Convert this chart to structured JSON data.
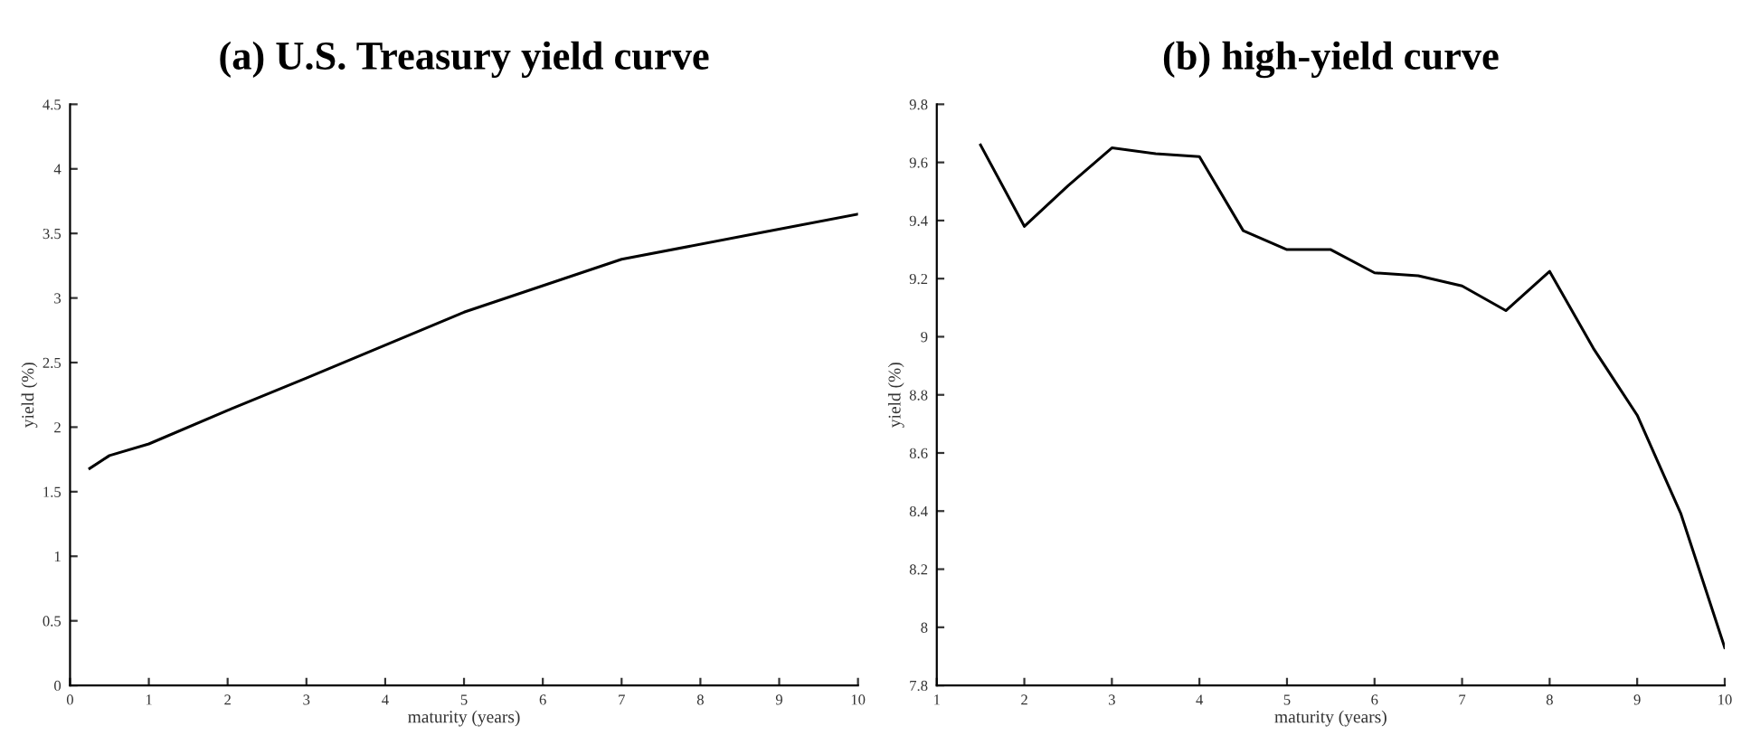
{
  "chart_data": [
    {
      "type": "line",
      "title": "(a) U.S. Treasury yield curve",
      "xlabel": "maturity (years)",
      "ylabel": "yield (%)",
      "series": [
        {
          "color": "#000000",
          "x": [
            0.25,
            0.5,
            1,
            2,
            3,
            5,
            7,
            10
          ],
          "values": [
            1.68,
            1.78,
            1.87,
            2.13,
            2.38,
            2.89,
            3.3,
            3.65
          ]
        }
      ],
      "xlim": [
        0,
        10
      ],
      "xticks": [
        0,
        1,
        2,
        3,
        4,
        5,
        6,
        7,
        8,
        9,
        10
      ],
      "ylim": [
        0,
        4.5
      ],
      "yticks": [
        0,
        0.5,
        1,
        1.5,
        2,
        2.5,
        3,
        3.5,
        4,
        4.5
      ],
      "grid": false,
      "legend": false
    },
    {
      "type": "line",
      "title": "(b) high-yield curve",
      "xlabel": "maturity (years)",
      "ylabel": "yield (%)",
      "series": [
        {
          "color": "#000000",
          "x": [
            1.5,
            2,
            2.5,
            3,
            3.5,
            4,
            4.5,
            5,
            5.5,
            6,
            6.5,
            7,
            7.5,
            8,
            8.5,
            9,
            9.5,
            10
          ],
          "values": [
            9.66,
            9.38,
            9.52,
            9.65,
            9.63,
            9.62,
            9.365,
            9.3,
            9.3,
            9.22,
            9.21,
            9.175,
            9.09,
            9.225,
            8.96,
            8.73,
            8.39,
            7.93
          ]
        }
      ],
      "xlim": [
        1,
        10
      ],
      "xticks": [
        1,
        2,
        3,
        4,
        5,
        6,
        7,
        8,
        9,
        10
      ],
      "ylim": [
        7.8,
        9.8
      ],
      "yticks": [
        7.8,
        8,
        8.2,
        8.4,
        8.6,
        8.8,
        9,
        9.2,
        9.4,
        9.6,
        9.8
      ],
      "grid": false,
      "legend": false
    }
  ]
}
